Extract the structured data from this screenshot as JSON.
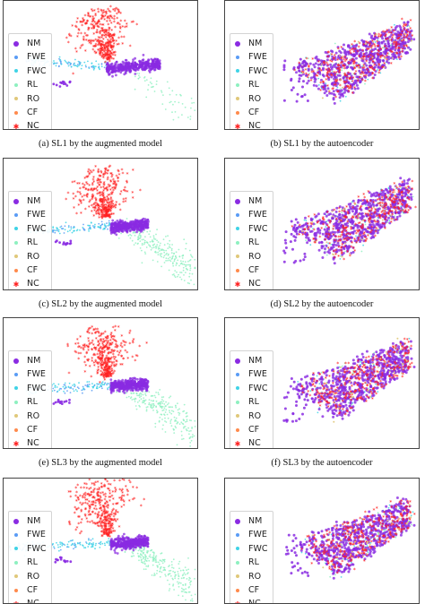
{
  "chart_data": [
    {
      "type": "scatter",
      "id": "a",
      "caption": "(a) SL1 by the augmented model",
      "legend": [
        "NM",
        "FWE",
        "FWC",
        "RL",
        "RO",
        "CF",
        "NC"
      ],
      "legend_placement": "left",
      "axes_visible": false,
      "grid": false
    },
    {
      "type": "scatter",
      "id": "b",
      "caption": "(b) SL1 by the autoencoder",
      "legend": [
        "NM",
        "FWE",
        "FWC",
        "RL",
        "RO",
        "CF",
        "NC"
      ],
      "legend_placement": "left",
      "axes_visible": false,
      "grid": false
    },
    {
      "type": "scatter",
      "id": "c",
      "caption": "(c) SL2 by the augmented model",
      "legend": [
        "NM",
        "FWE",
        "FWC",
        "RL",
        "RO",
        "CF",
        "NC"
      ],
      "legend_placement": "left",
      "axes_visible": false,
      "grid": false
    },
    {
      "type": "scatter",
      "id": "d",
      "caption": "(d) SL2 by the autoencoder",
      "legend": [
        "NM",
        "FWE",
        "FWC",
        "RL",
        "RO",
        "CF",
        "NC"
      ],
      "legend_placement": "left",
      "axes_visible": false,
      "grid": false
    },
    {
      "type": "scatter",
      "id": "e",
      "caption": "(e) SL3 by the augmented model",
      "legend": [
        "NM",
        "FWE",
        "FWC",
        "RL",
        "RO",
        "CF",
        "NC"
      ],
      "legend_placement": "left",
      "axes_visible": false,
      "grid": false
    },
    {
      "type": "scatter",
      "id": "f",
      "caption": "(f) SL3 by the autoencoder",
      "legend": [
        "NM",
        "FWE",
        "FWC",
        "RL",
        "RO",
        "CF",
        "NC"
      ],
      "legend_placement": "left",
      "axes_visible": false,
      "grid": false
    },
    {
      "type": "scatter",
      "id": "g",
      "caption": "",
      "legend": [
        "NM",
        "FWE",
        "FWC",
        "RL",
        "RO",
        "CF",
        "NC"
      ],
      "legend_placement": "left",
      "axes_visible": false,
      "grid": false
    },
    {
      "type": "scatter",
      "id": "h",
      "caption": "",
      "legend": [
        "NM",
        "FWE",
        "FWC",
        "RL",
        "RO",
        "CF",
        "NC"
      ],
      "legend_placement": "left",
      "axes_visible": false,
      "grid": false
    }
  ],
  "series_colors": {
    "NM": "#8a2be2",
    "FWE": "#5a9cf5",
    "FWC": "#3fd3e6",
    "RL": "#8ef0c0",
    "RO": "#e0c87a",
    "CF": "#ff8a4c",
    "NC": "#ff2020"
  },
  "marker_shapes": {
    "NM": "dot-large",
    "FWE": "dot",
    "FWC": "dot",
    "RL": "dot",
    "RO": "dot",
    "CF": "dot",
    "NC": "star"
  }
}
